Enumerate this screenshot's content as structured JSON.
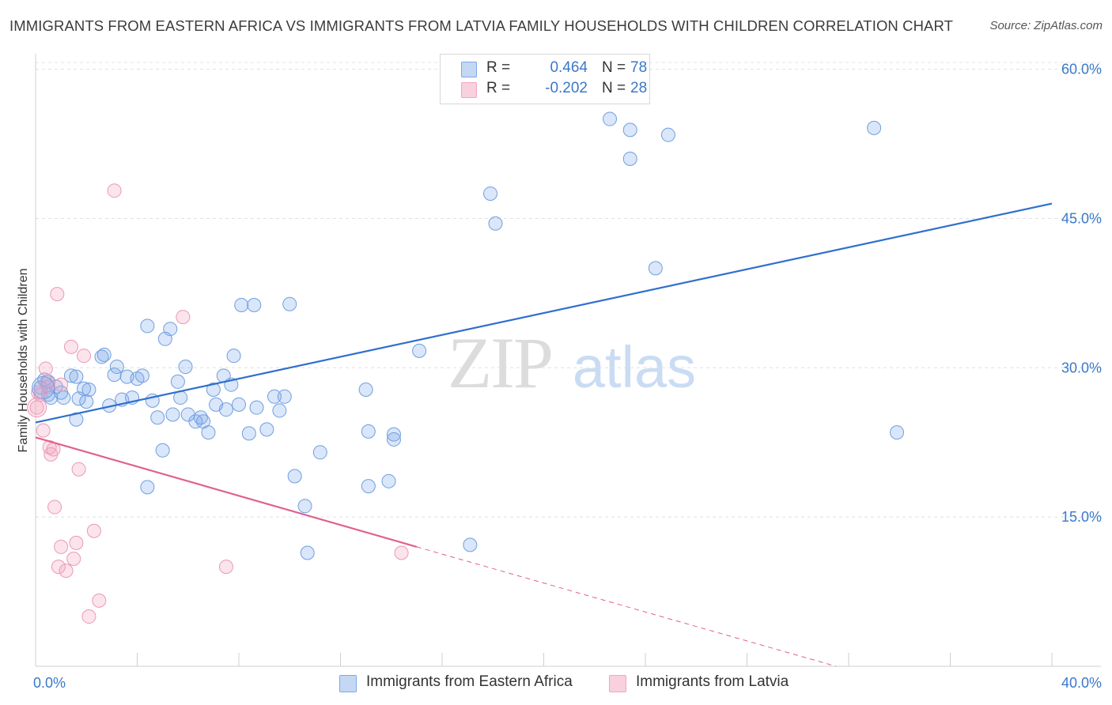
{
  "title": "IMMIGRANTS FROM EASTERN AFRICA VS IMMIGRANTS FROM LATVIA FAMILY HOUSEHOLDS WITH CHILDREN CORRELATION CHART",
  "source": "Source: ZipAtlas.com",
  "watermark": {
    "zip": "ZIP",
    "atlas": "atlas"
  },
  "legend": {
    "r_label": "R =",
    "n_label": "N =",
    "series": [
      {
        "r": "0.464",
        "n": "78"
      },
      {
        "r": "-0.202",
        "n": "28"
      }
    ]
  },
  "chart_data": {
    "type": "scatter",
    "title": "IMMIGRANTS FROM EASTERN AFRICA VS IMMIGRANTS FROM LATVIA FAMILY HOUSEHOLDS WITH CHILDREN CORRELATION CHART",
    "xlabel": "",
    "ylabel": "Family Households with Children",
    "xlim": [
      0,
      40
    ],
    "ylim": [
      0,
      61
    ],
    "x_tick_labels": [
      "0.0%",
      "40.0%"
    ],
    "y_ticks": [
      15,
      30,
      45,
      60
    ],
    "y_tick_labels": [
      "15.0%",
      "30.0%",
      "45.0%",
      "60.0%"
    ],
    "grid": "horizontal dashed",
    "legend_position": "top-center",
    "series": [
      {
        "name": "Immigrants from Eastern Africa",
        "color": "#7aa7e8",
        "line_color": "#2f6fce",
        "trend": {
          "x0": 0,
          "y0": 24.5,
          "x1": 40,
          "y1": 46.5
        },
        "points": [
          [
            0.2,
            28.0
          ],
          [
            0.35,
            28.8
          ],
          [
            0.5,
            27.3
          ],
          [
            0.6,
            27.0
          ],
          [
            0.8,
            28.1
          ],
          [
            1.0,
            27.5
          ],
          [
            1.4,
            29.2
          ],
          [
            1.6,
            29.1
          ],
          [
            1.7,
            26.9
          ],
          [
            1.9,
            27.9
          ],
          [
            0.5,
            28.6
          ],
          [
            1.6,
            24.8
          ],
          [
            2.0,
            26.6
          ],
          [
            2.1,
            27.8
          ],
          [
            2.6,
            31.1
          ],
          [
            2.7,
            31.3
          ],
          [
            2.9,
            26.2
          ],
          [
            3.1,
            29.3
          ],
          [
            3.2,
            30.1
          ],
          [
            3.4,
            26.8
          ],
          [
            3.6,
            29.1
          ],
          [
            3.8,
            27.0
          ],
          [
            4.0,
            28.9
          ],
          [
            4.2,
            29.2
          ],
          [
            4.4,
            18.0
          ],
          [
            4.4,
            34.2
          ],
          [
            4.6,
            26.7
          ],
          [
            4.8,
            25.0
          ],
          [
            5.0,
            21.7
          ],
          [
            5.1,
            32.9
          ],
          [
            5.3,
            33.9
          ],
          [
            5.4,
            25.3
          ],
          [
            5.6,
            28.6
          ],
          [
            5.7,
            27.0
          ],
          [
            5.9,
            30.1
          ],
          [
            6.0,
            25.3
          ],
          [
            6.3,
            24.6
          ],
          [
            6.5,
            25.0
          ],
          [
            6.6,
            24.6
          ],
          [
            6.8,
            23.5
          ],
          [
            7.0,
            27.8
          ],
          [
            7.1,
            26.3
          ],
          [
            7.4,
            29.2
          ],
          [
            7.5,
            25.8
          ],
          [
            7.7,
            28.3
          ],
          [
            7.8,
            31.2
          ],
          [
            8.0,
            26.3
          ],
          [
            8.1,
            36.3
          ],
          [
            8.4,
            23.4
          ],
          [
            8.6,
            36.3
          ],
          [
            8.7,
            26.0
          ],
          [
            9.1,
            23.8
          ],
          [
            9.4,
            27.1
          ],
          [
            9.6,
            25.7
          ],
          [
            9.8,
            27.1
          ],
          [
            10.0,
            36.4
          ],
          [
            10.2,
            19.1
          ],
          [
            10.6,
            16.1
          ],
          [
            10.7,
            11.4
          ],
          [
            11.2,
            21.5
          ],
          [
            13.0,
            27.8
          ],
          [
            13.1,
            23.6
          ],
          [
            13.1,
            18.1
          ],
          [
            13.9,
            18.6
          ],
          [
            14.1,
            23.3
          ],
          [
            14.1,
            22.8
          ],
          [
            15.1,
            31.7
          ],
          [
            17.1,
            12.2
          ],
          [
            17.9,
            47.5
          ],
          [
            18.1,
            44.5
          ],
          [
            22.6,
            55.0
          ],
          [
            23.4,
            53.9
          ],
          [
            23.4,
            51.0
          ],
          [
            24.4,
            40.0
          ],
          [
            24.9,
            53.4
          ],
          [
            33.0,
            54.1
          ],
          [
            33.9,
            23.5
          ],
          [
            1.1,
            27.0
          ]
        ]
      },
      {
        "name": "Immigrants from Latvia",
        "color": "#f2a5c0",
        "line_color": "#e0608e",
        "trend": {
          "x0": 0,
          "y0": 23.0,
          "x1": 15.0,
          "y1": 12.0
        },
        "trend_dashed": {
          "x0": 15.0,
          "y0": 12.0,
          "x1": 31.5,
          "y1": 0
        },
        "points": [
          [
            0.05,
            26.0
          ],
          [
            0.1,
            27.5
          ],
          [
            0.2,
            27.3
          ],
          [
            0.3,
            23.7
          ],
          [
            0.4,
            29.9
          ],
          [
            0.45,
            28.6
          ],
          [
            0.5,
            28.1
          ],
          [
            0.55,
            22.0
          ],
          [
            0.6,
            21.3
          ],
          [
            0.7,
            21.8
          ],
          [
            0.75,
            16.0
          ],
          [
            0.85,
            37.4
          ],
          [
            0.9,
            10.0
          ],
          [
            1.0,
            12.0
          ],
          [
            1.0,
            28.3
          ],
          [
            1.2,
            9.6
          ],
          [
            1.4,
            32.1
          ],
          [
            1.5,
            10.8
          ],
          [
            1.6,
            12.4
          ],
          [
            1.7,
            19.8
          ],
          [
            1.9,
            31.2
          ],
          [
            2.1,
            5.0
          ],
          [
            2.3,
            13.6
          ],
          [
            2.5,
            6.6
          ],
          [
            3.1,
            47.8
          ],
          [
            5.8,
            35.1
          ],
          [
            7.5,
            10.0
          ],
          [
            14.4,
            11.4
          ]
        ]
      }
    ]
  },
  "bottom_legend": {
    "items": [
      "Immigrants from Eastern Africa",
      "Immigrants from Latvia"
    ]
  }
}
